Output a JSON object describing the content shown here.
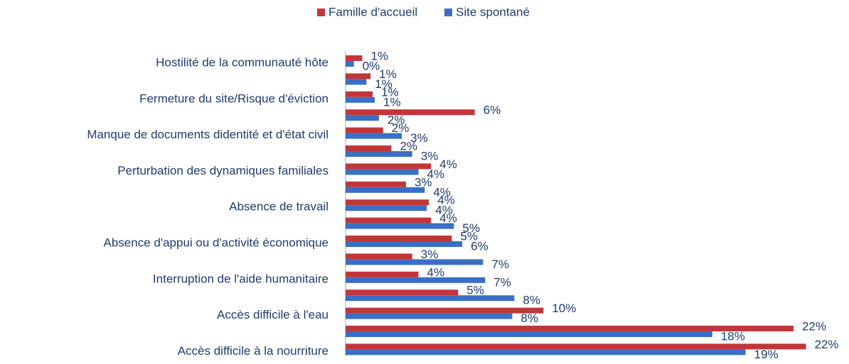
{
  "chart_data": {
    "type": "hbar",
    "categories": [
      "Hostilité de la communauté hôte",
      null,
      "Fermeture du site/Risque d'éviction",
      null,
      "Manque de documents didentité et d'état civil",
      null,
      "Perturbation des dynamiques familiales",
      null,
      "Absence de travail",
      null,
      "Absence d'appui ou d'activité économique",
      null,
      "Interruption de l'aide humanitaire",
      null,
      "Accès difficile à l'eau",
      null,
      "Accès difficile à la nourriture"
    ],
    "series": [
      {
        "name": "Famille d'accueil",
        "color": "#c0373a",
        "values": [
          0.8,
          1.2,
          1.3,
          6.2,
          1.8,
          2.2,
          4.1,
          2.9,
          4.0,
          4.1,
          5.1,
          3.2,
          3.5,
          5.4,
          9.5,
          21.5,
          22.1
        ],
        "value_labels": [
          "1%",
          "1%",
          "1%",
          "6%",
          "2%",
          "2%",
          "4%",
          "3%",
          "4%",
          "4%",
          "5%",
          "3%",
          "4%",
          "5%",
          "10%",
          "22%",
          "22%"
        ]
      },
      {
        "name": "Site spontané",
        "color": "#3a6fc4",
        "values": [
          0.4,
          1.0,
          1.4,
          1.6,
          2.7,
          3.2,
          3.5,
          3.8,
          3.9,
          5.2,
          5.6,
          6.6,
          6.7,
          8.1,
          8.0,
          17.6,
          19.2
        ],
        "value_labels": [
          "0%",
          "1%",
          "1%",
          "2%",
          "3%",
          "3%",
          "4%",
          "4%",
          "4%",
          "5%",
          "6%",
          "7%",
          "7%",
          "8%",
          "8%",
          "18%",
          "19%"
        ]
      }
    ],
    "xlim": [
      0,
      23
    ],
    "legend": "top"
  }
}
